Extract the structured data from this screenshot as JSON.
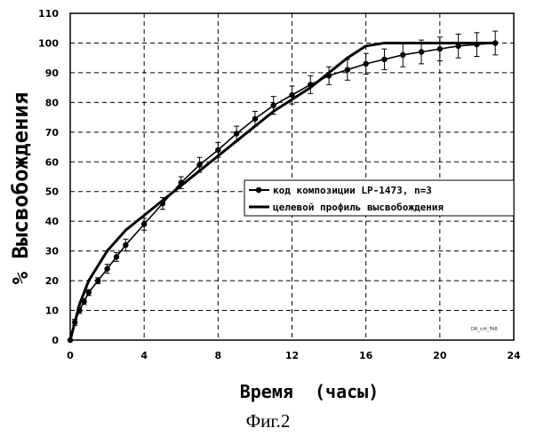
{
  "caption": "Фиг.2",
  "watermark": "DR_crit_FAB",
  "chart_data": {
    "type": "line",
    "title": "",
    "xlabel": "Время  (часы)",
    "ylabel": "% Высвобождения",
    "xlim": [
      0,
      24
    ],
    "ylim": [
      0,
      110
    ],
    "xticks": [
      0,
      4,
      8,
      12,
      16,
      20,
      24
    ],
    "yticks": [
      0,
      10,
      20,
      30,
      40,
      50,
      60,
      70,
      80,
      90,
      100,
      110
    ],
    "grid": true,
    "legend_position": "center-right",
    "series": [
      {
        "name": "код композиции LP-1473, n=3",
        "style": "line-markers-errorbars",
        "color": "#000000",
        "x": [
          0,
          0.25,
          0.5,
          0.75,
          1,
          1.5,
          2,
          2.5,
          3,
          4,
          5,
          6,
          7,
          8,
          9,
          10,
          11,
          12,
          13,
          14,
          15,
          16,
          17,
          18,
          19,
          20,
          21,
          22,
          23
        ],
        "y": [
          0,
          6,
          10,
          13,
          16,
          20,
          24,
          28,
          32,
          39,
          46,
          53,
          59,
          64,
          69.5,
          74.5,
          79,
          82.5,
          86,
          89,
          91,
          93,
          94.5,
          96,
          97,
          98,
          99,
          99.5,
          100
        ],
        "error": [
          0,
          1,
          1,
          1,
          1,
          1,
          1.5,
          1.5,
          2,
          2,
          2,
          2,
          2.5,
          2.5,
          2.5,
          2.5,
          3,
          3,
          3,
          3,
          3.5,
          3.5,
          3.5,
          4,
          4,
          4,
          4,
          4,
          4
        ]
      },
      {
        "name": "целевой профиль высвобождения",
        "style": "line",
        "color": "#000000",
        "x": [
          0,
          0.5,
          1,
          2,
          3,
          4,
          5,
          6,
          7,
          8,
          9,
          10,
          11,
          12,
          13,
          14,
          15,
          16,
          17,
          18,
          19,
          20,
          21,
          22,
          23
        ],
        "y": [
          0,
          12,
          20,
          30,
          37,
          42,
          47,
          52,
          57,
          62,
          67,
          72,
          77,
          81,
          85,
          90,
          95,
          99,
          100,
          100,
          100,
          100,
          100,
          100,
          100
        ]
      }
    ]
  }
}
